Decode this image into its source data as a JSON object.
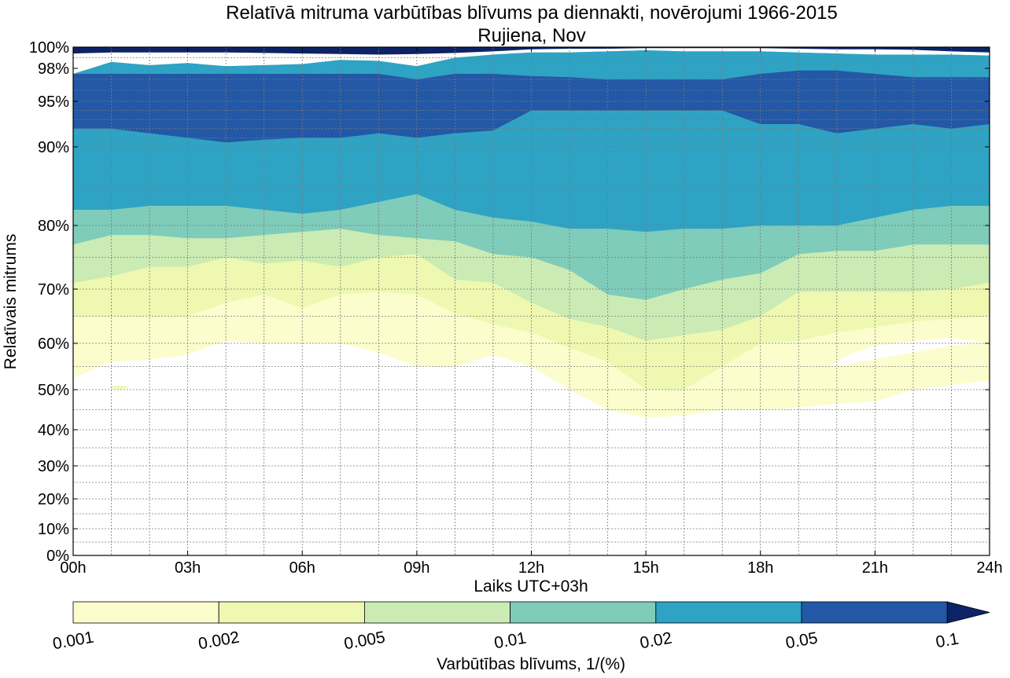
{
  "chart_data": {
    "type": "contour",
    "title": "Relatīvā mitruma varbūtības blīvums pa diennakti, novērojumi 1966-2015",
    "subtitle": "Rujiena, Nov",
    "xlabel": "Laiks UTC+03h",
    "ylabel": "Relatīvais mitrums",
    "x_unit": "hours (UTC+03h)",
    "xlim": [
      0,
      24
    ],
    "x_ticks": [
      0,
      3,
      6,
      9,
      12,
      15,
      18,
      21,
      24
    ],
    "x_tick_labels": [
      "00h",
      "03h",
      "06h",
      "09h",
      "12h",
      "15h",
      "18h",
      "21h",
      "24h"
    ],
    "x_minor_grid_step": 1,
    "y_scale": "piecewise (compressed below 40%, expanded near 100%)",
    "y_ticks": [
      0,
      10,
      20,
      30,
      40,
      50,
      60,
      70,
      80,
      90,
      95,
      98,
      100
    ],
    "y_tick_labels": [
      "0%",
      "10%",
      "20%",
      "30%",
      "40%",
      "50%",
      "60%",
      "70%",
      "80%",
      "90%",
      "95%",
      "98%",
      "100%"
    ],
    "grid": true,
    "colorbar": {
      "label": "Varbūtības blīvums, 1/(%)",
      "levels": [
        0.001,
        0.002,
        0.005,
        0.01,
        0.02,
        0.05,
        0.1
      ],
      "tick_labels": [
        "0.001",
        "0.002",
        "0.005",
        "0.01",
        "0.02",
        "0.05",
        "0.1"
      ],
      "colors": [
        "#fbfdcc",
        "#eef8b1",
        "#cbebb4",
        "#7fccba",
        "#2fa3c4",
        "#2358a6",
        "#0d2366"
      ],
      "extend": "max",
      "placement": "bottom"
    },
    "x": [
      0,
      1,
      2,
      3,
      4,
      5,
      6,
      7,
      8,
      9,
      10,
      11,
      12,
      13,
      14,
      15,
      16,
      17,
      18,
      19,
      20,
      21,
      22,
      23,
      24
    ],
    "boundaries": [
      {
        "level": 0.001,
        "lower": [
          52.5,
          56,
          56.5,
          57.5,
          60.5,
          60,
          60,
          60,
          58,
          55,
          55,
          57.5,
          55,
          50,
          45,
          43,
          43.5,
          45,
          45,
          45.5,
          46.5,
          47,
          50,
          51,
          52
        ],
        "upper": [
          97.5,
          98.6,
          98.3,
          98.5,
          98.2,
          98.3,
          98.4,
          98.8,
          98.7,
          98.2,
          99.0,
          99.3,
          99.5,
          99.5,
          99.6,
          99.7,
          99.6,
          99.6,
          99.6,
          99.5,
          99.4,
          99.3,
          99.3,
          99.3,
          99.2
        ]
      },
      {
        "level": 0.002,
        "lower": [
          65,
          65,
          65,
          65,
          67.5,
          69,
          66.5,
          69,
          69.5,
          69,
          65.5,
          63.5,
          62,
          59,
          56,
          50,
          50,
          55,
          60,
          60.5,
          62,
          63,
          64,
          64.5,
          65
        ],
        "upper": [
          97.5,
          98.6,
          98.3,
          98.5,
          98.2,
          98.3,
          98.4,
          98.8,
          98.7,
          98.2,
          99.0,
          99.3,
          99.5,
          99.5,
          99.6,
          99.7,
          99.6,
          99.6,
          99.6,
          99.5,
          99.4,
          99.3,
          99.3,
          99.3,
          99.2
        ]
      },
      {
        "level": 0.005,
        "lower": [
          71,
          72,
          73.5,
          73.5,
          75,
          74,
          74.5,
          73.5,
          75,
          75.5,
          71.5,
          71,
          67.5,
          64.5,
          63,
          60.5,
          61.5,
          62.5,
          65,
          69.5,
          69.5,
          69.5,
          69.5,
          70,
          71
        ],
        "upper": [
          97.5,
          98.6,
          98.3,
          98.5,
          98.2,
          98.3,
          98.4,
          98.8,
          98.7,
          98.2,
          99.0,
          99.3,
          99.5,
          99.5,
          99.6,
          99.7,
          99.6,
          99.6,
          99.6,
          99.5,
          99.4,
          99.3,
          99.3,
          99.3,
          99.2
        ]
      },
      {
        "level": 0.01,
        "lower": [
          77,
          78.5,
          78.5,
          78,
          78,
          78.5,
          79,
          79.5,
          78.5,
          78,
          77.5,
          75.5,
          75,
          73,
          69,
          68,
          70,
          71.5,
          72.5,
          75.5,
          76,
          76,
          77,
          77,
          77
        ],
        "upper": [
          97.5,
          98.6,
          98.3,
          98.5,
          98.2,
          98.3,
          98.4,
          98.8,
          98.7,
          98.2,
          99.0,
          99.3,
          99.5,
          99.5,
          99.6,
          99.7,
          99.6,
          99.6,
          99.6,
          99.5,
          99.4,
          99.3,
          99.3,
          99.3,
          99.2
        ]
      },
      {
        "level": 0.02,
        "lower": [
          82,
          82,
          82.5,
          82.5,
          82.5,
          82,
          81.5,
          82,
          83,
          84,
          82,
          81,
          80.5,
          79.5,
          79.5,
          79,
          79.5,
          79.5,
          80,
          80,
          80,
          81,
          82,
          82.5,
          82.5
        ],
        "upper": [
          97.5,
          98.6,
          98.3,
          98.5,
          98.2,
          98.3,
          98.4,
          98.8,
          98.7,
          98.2,
          99.0,
          99.3,
          99.5,
          99.5,
          99.6,
          99.7,
          99.6,
          99.6,
          99.6,
          99.5,
          99.4,
          99.3,
          99.3,
          99.3,
          99.2
        ]
      },
      {
        "level": 0.05,
        "lower": [
          92,
          92,
          91.5,
          91,
          90.5,
          90.8,
          91,
          91,
          91.5,
          91,
          91.5,
          91.8,
          94,
          94,
          94,
          94,
          94,
          94,
          92.5,
          92.5,
          91.5,
          92,
          92.5,
          92,
          92.5
        ],
        "upper": [
          97.5,
          97.5,
          97.5,
          97.5,
          97.5,
          97.5,
          97.5,
          97.5,
          97.5,
          97.0,
          97.5,
          97.5,
          97.3,
          97.2,
          97.0,
          97.0,
          97.0,
          97.0,
          97.5,
          97.8,
          97.8,
          97.5,
          97.2,
          97.2,
          97.2
        ]
      }
    ],
    "islands": [
      {
        "level": 0.05,
        "x": [
          14.6,
          15.0,
          15.5,
          16.0,
          16.5,
          17.0,
          16.5,
          16.0,
          15.5,
          15.0,
          14.6
        ],
        "y": [
          95.8,
          96.4,
          96.0,
          95.9,
          95.7,
          95.9,
          95.2,
          95.2,
          95.1,
          94.8,
          95.8
        ]
      },
      {
        "level": 0.1,
        "x": [
          0,
          24,
          24,
          23,
          22,
          21,
          20,
          19,
          18,
          17,
          16,
          15,
          14,
          13,
          12,
          11,
          10,
          9,
          8,
          7,
          6,
          5,
          4,
          3,
          2,
          1,
          0
        ],
        "y": [
          100,
          100,
          99.5,
          99.6,
          99.75,
          99.8,
          99.8,
          99.85,
          99.9,
          99.9,
          99.9,
          99.9,
          99.85,
          99.85,
          99.8,
          99.6,
          99.45,
          99.35,
          99.3,
          99.35,
          99.4,
          99.45,
          99.5,
          99.5,
          99.5,
          99.5,
          99.4
        ]
      }
    ],
    "holes": [
      {
        "level": 0.001,
        "x": [
          19.8,
          20.3,
          21.0,
          22.0,
          23.0,
          24.0,
          23.0,
          22.0,
          21.0,
          20.3,
          19.8
        ],
        "y": [
          55,
          57.5,
          59.5,
          60.5,
          61,
          60,
          59.5,
          58,
          56.5,
          55.5,
          55
        ]
      }
    ],
    "specks": [
      {
        "level": 0.1,
        "x": 1.2,
        "y": 50.5
      }
    ]
  }
}
